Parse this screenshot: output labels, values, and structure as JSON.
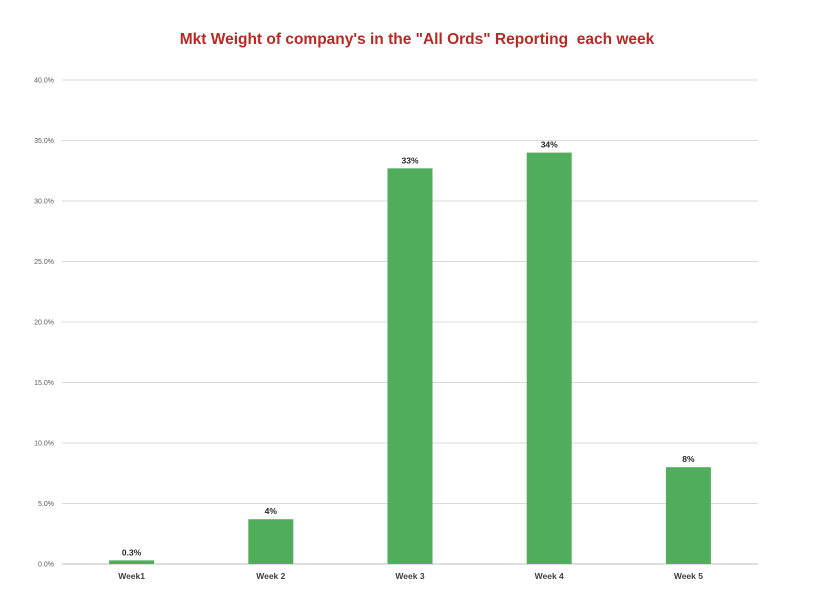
{
  "chart_data": {
    "type": "bar",
    "title": "Mkt Weight of company's in the \"All Ords\" Reporting  each week",
    "xlabel": "",
    "ylabel": "",
    "categories": [
      "Week1",
      "Week 2",
      "Week 3",
      "Week 4",
      "Week 5"
    ],
    "values": [
      0.3,
      3.7,
      32.7,
      34.0,
      8.0
    ],
    "data_labels": [
      "0.3%",
      "4%",
      "33%",
      "34%",
      "8%"
    ],
    "ylim": [
      0,
      40
    ],
    "y_ticks": [
      0,
      5,
      10,
      15,
      20,
      25,
      30,
      35,
      40
    ],
    "y_tick_labels": [
      "0.0%",
      "5.0%",
      "10.0%",
      "15.0%",
      "20.0%",
      "25.0%",
      "30.0%",
      "35.0%",
      "40.0%"
    ],
    "grid": true,
    "legend": "none",
    "colors": {
      "bar": "#4fad5b",
      "title": "#b52a25",
      "grid": "#d9d9d9",
      "axis": "#bfbfbf"
    }
  }
}
